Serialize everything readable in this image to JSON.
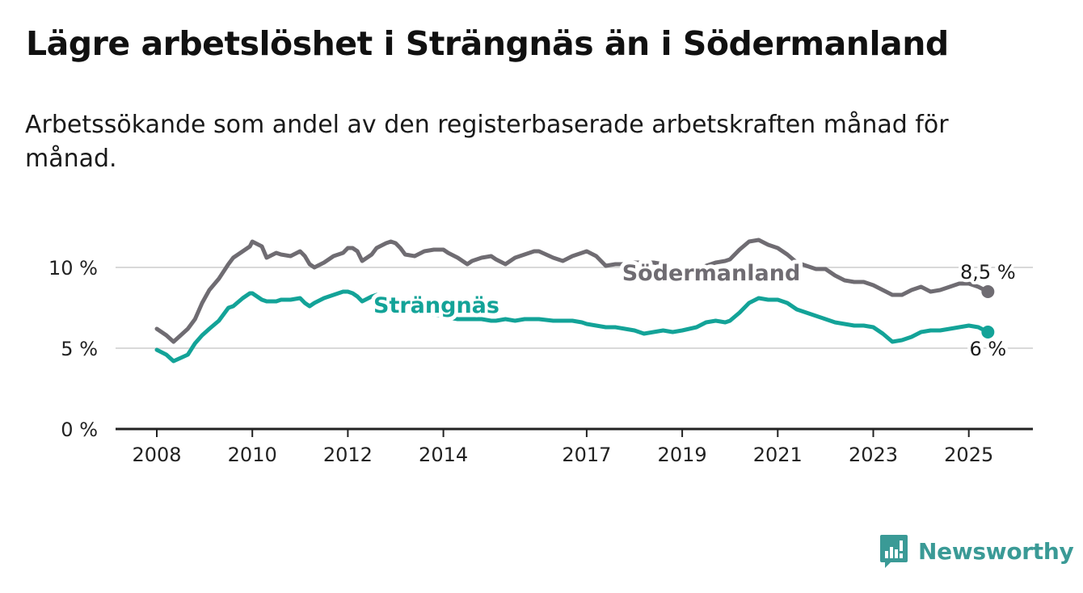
{
  "header": {
    "title": "Lägre arbetslöshet i Strängnäs än i Södermanland",
    "subtitle": "Arbetssökande som andel av den registerbaserade arbetskraften månad för månad."
  },
  "brand": {
    "name": "Newsworthy",
    "color": "#3a9a96"
  },
  "colors": {
    "strangnas": "#13a398",
    "sodermanland": "#6f6c72",
    "grid": "#d9d9d9",
    "axis": "#222222"
  },
  "chart_data": {
    "type": "line",
    "ylim": [
      0,
      12
    ],
    "yticks": [
      {
        "value": 0,
        "label": "0 %"
      },
      {
        "value": 5,
        "label": "5 %"
      },
      {
        "value": 10,
        "label": "10 %"
      }
    ],
    "xlim": [
      2007.95,
      2025.65
    ],
    "xticks": [
      {
        "value": 2008,
        "label": "2008"
      },
      {
        "value": 2010,
        "label": "2010"
      },
      {
        "value": 2012,
        "label": "2012"
      },
      {
        "value": 2014,
        "label": "2014"
      },
      {
        "value": 2017,
        "label": "2017"
      },
      {
        "value": 2019,
        "label": "2019"
      },
      {
        "value": 2021,
        "label": "2021"
      },
      {
        "value": 2023,
        "label": "2023"
      },
      {
        "value": 2025,
        "label": "2025"
      }
    ],
    "grid": "horizontal",
    "series": [
      {
        "name": "Södermanland",
        "color": "#6f6c72",
        "end_label": "8,5 %",
        "x": [
          2008.0,
          2008.2,
          2008.35,
          2008.5,
          2008.65,
          2008.8,
          2008.95,
          2009.1,
          2009.3,
          2009.5,
          2009.6,
          2009.8,
          2009.95,
          2010.0,
          2010.2,
          2010.3,
          2010.5,
          2010.6,
          2010.8,
          2011.0,
          2011.1,
          2011.2,
          2011.3,
          2011.5,
          2011.7,
          2011.9,
          2012.0,
          2012.1,
          2012.2,
          2012.3,
          2012.5,
          2012.6,
          2012.8,
          2012.9,
          2013.0,
          2013.1,
          2013.2,
          2013.4,
          2013.6,
          2013.8,
          2014.0,
          2014.1,
          2014.3,
          2014.5,
          2014.6,
          2014.8,
          2015.0,
          2015.1,
          2015.3,
          2015.5,
          2015.7,
          2015.9,
          2016.0,
          2016.3,
          2016.5,
          2016.7,
          2016.9,
          2017.0,
          2017.2,
          2017.4,
          2017.6,
          2017.8,
          2018.0,
          2018.2,
          2018.4,
          2018.6,
          2018.8,
          2019.0,
          2019.3,
          2019.5,
          2019.7,
          2019.9,
          2020.0,
          2020.2,
          2020.4,
          2020.6,
          2020.8,
          2020.9,
          2021.0,
          2021.2,
          2021.4,
          2021.6,
          2021.8,
          2022.0,
          2022.2,
          2022.4,
          2022.6,
          2022.8,
          2023.0,
          2023.2,
          2023.4,
          2023.6,
          2023.8,
          2024.0,
          2024.2,
          2024.4,
          2024.6,
          2024.8,
          2025.0,
          2025.2,
          2025.4
        ],
        "y": [
          6.2,
          5.8,
          5.4,
          5.8,
          6.2,
          6.8,
          7.8,
          8.6,
          9.3,
          10.2,
          10.6,
          11.0,
          11.3,
          11.6,
          11.3,
          10.6,
          10.9,
          10.8,
          10.7,
          11.0,
          10.7,
          10.2,
          10.0,
          10.3,
          10.7,
          10.9,
          11.2,
          11.2,
          11.0,
          10.4,
          10.8,
          11.2,
          11.5,
          11.6,
          11.5,
          11.2,
          10.8,
          10.7,
          11.0,
          11.1,
          11.1,
          10.9,
          10.6,
          10.2,
          10.4,
          10.6,
          10.7,
          10.5,
          10.2,
          10.6,
          10.8,
          11.0,
          11.0,
          10.6,
          10.4,
          10.7,
          10.9,
          11.0,
          10.7,
          10.1,
          10.2,
          10.2,
          10.3,
          10.3,
          10.3,
          10.2,
          9.9,
          9.6,
          9.6,
          10.1,
          10.3,
          10.4,
          10.5,
          11.1,
          11.6,
          11.7,
          11.4,
          11.3,
          11.2,
          10.8,
          10.3,
          10.1,
          9.9,
          9.9,
          9.5,
          9.2,
          9.1,
          9.1,
          8.9,
          8.6,
          8.3,
          8.3,
          8.6,
          8.8,
          8.5,
          8.6,
          8.8,
          9.0,
          9.0,
          8.8,
          8.5
        ]
      },
      {
        "name": "Strängnäs",
        "color": "#13a398",
        "end_label": "6 %",
        "x": [
          2008.0,
          2008.2,
          2008.35,
          2008.5,
          2008.65,
          2008.8,
          2008.95,
          2009.1,
          2009.3,
          2009.5,
          2009.6,
          2009.8,
          2009.95,
          2010.0,
          2010.2,
          2010.3,
          2010.5,
          2010.6,
          2010.8,
          2011.0,
          2011.1,
          2011.2,
          2011.3,
          2011.5,
          2011.7,
          2011.9,
          2012.0,
          2012.1,
          2012.2,
          2012.3,
          2012.5,
          2012.6,
          2012.8,
          2012.9,
          2013.0,
          2013.1,
          2013.2,
          2013.4,
          2013.6,
          2013.8,
          2014.0,
          2014.1,
          2014.3,
          2014.5,
          2014.6,
          2014.8,
          2015.0,
          2015.1,
          2015.3,
          2015.5,
          2015.7,
          2015.9,
          2016.0,
          2016.3,
          2016.5,
          2016.7,
          2016.9,
          2017.0,
          2017.2,
          2017.4,
          2017.6,
          2017.8,
          2018.0,
          2018.2,
          2018.4,
          2018.6,
          2018.8,
          2019.0,
          2019.3,
          2019.5,
          2019.7,
          2019.9,
          2020.0,
          2020.2,
          2020.4,
          2020.6,
          2020.8,
          2020.9,
          2021.0,
          2021.2,
          2021.4,
          2021.6,
          2021.8,
          2022.0,
          2022.2,
          2022.4,
          2022.6,
          2022.8,
          2023.0,
          2023.2,
          2023.4,
          2023.6,
          2023.8,
          2024.0,
          2024.2,
          2024.4,
          2024.6,
          2024.8,
          2025.0,
          2025.2,
          2025.4
        ],
        "y": [
          4.9,
          4.6,
          4.2,
          4.4,
          4.6,
          5.3,
          5.8,
          6.2,
          6.7,
          7.5,
          7.6,
          8.1,
          8.4,
          8.4,
          8.0,
          7.9,
          7.9,
          8.0,
          8.0,
          8.1,
          7.8,
          7.6,
          7.8,
          8.1,
          8.3,
          8.5,
          8.5,
          8.4,
          8.2,
          7.9,
          8.2,
          8.3,
          8.1,
          7.9,
          7.8,
          7.6,
          7.4,
          7.3,
          7.2,
          7.1,
          7.0,
          6.9,
          6.8,
          6.8,
          6.8,
          6.8,
          6.7,
          6.7,
          6.8,
          6.7,
          6.8,
          6.8,
          6.8,
          6.7,
          6.7,
          6.7,
          6.6,
          6.5,
          6.4,
          6.3,
          6.3,
          6.2,
          6.1,
          5.9,
          6.0,
          6.1,
          6.0,
          6.1,
          6.3,
          6.6,
          6.7,
          6.6,
          6.7,
          7.2,
          7.8,
          8.1,
          8.0,
          8.0,
          8.0,
          7.8,
          7.4,
          7.2,
          7.0,
          6.8,
          6.6,
          6.5,
          6.4,
          6.4,
          6.3,
          5.9,
          5.4,
          5.5,
          5.7,
          6.0,
          6.1,
          6.1,
          6.2,
          6.3,
          6.4,
          6.3,
          6.0
        ]
      }
    ]
  }
}
